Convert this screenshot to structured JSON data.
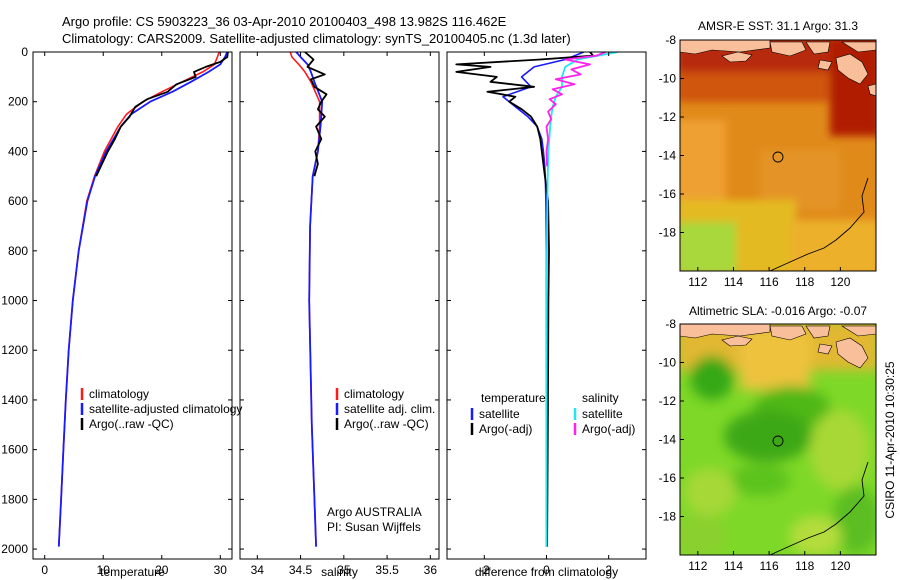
{
  "header": {
    "line1": "Argo profile: CS 5903223_36 03-Apr-2010 20100403_498 13.982S 116.462E",
    "line2": "Climatology: CARS2009. Satellite-adjusted climatology: synTS_20100405.nc (1.3d later)"
  },
  "side_label": "CSIRO 11-Apr-2010 10:30:25",
  "colors": {
    "climatology": "#ff1a1a",
    "satellite": "#1a1aff",
    "argo": "#000000",
    "salinity_satellite": "#22e6f0",
    "salinity_argo": "#ff22ee",
    "land": "#f8bf9a"
  },
  "chart_data": [
    {
      "type": "line",
      "title": "",
      "xlabel": "temperature",
      "ylabel": "",
      "xlim": [
        -2,
        32
      ],
      "ylim": [
        2040,
        0
      ],
      "xticks": [
        0,
        10,
        20,
        30
      ],
      "xtick_labels": [
        "0",
        "10",
        "20",
        "30"
      ],
      "yticks": [
        0,
        200,
        400,
        600,
        800,
        1000,
        1200,
        1400,
        1600,
        1800,
        2000
      ],
      "ytick_labels": [
        "0",
        "200",
        "400",
        "600",
        "800",
        "1000",
        "1200",
        "1400",
        "1600",
        "1800",
        "2000"
      ],
      "legend": [
        "climatology",
        "satellite-adjusted climatology",
        "Argo(..raw -QC)"
      ],
      "legend_colors": [
        "#ff1a1a",
        "#1a1aff",
        "#000000"
      ],
      "legend_position": "lower-right",
      "series": [
        {
          "name": "climatology",
          "color": "#ff1a1a",
          "depth": [
            0,
            20,
            50,
            80,
            120,
            160,
            200,
            250,
            300,
            400,
            500,
            600,
            800,
            1000,
            1200,
            1400,
            1600,
            1800,
            1990
          ],
          "values": [
            29.8,
            29.5,
            29.0,
            27.0,
            23.5,
            20.0,
            16.8,
            14.0,
            12.5,
            10.2,
            8.5,
            7.2,
            5.8,
            4.8,
            4.1,
            3.6,
            3.2,
            2.8,
            2.4
          ]
        },
        {
          "name": "satellite-adjusted climatology",
          "color": "#1a1aff",
          "depth": [
            0,
            20,
            50,
            80,
            120,
            160,
            200,
            250,
            300,
            400,
            500,
            600,
            800,
            1000,
            1200,
            1400,
            1600,
            1800,
            1990
          ],
          "values": [
            31.2,
            30.8,
            30.0,
            28.0,
            25.0,
            21.8,
            18.0,
            14.8,
            13.0,
            10.5,
            8.6,
            7.3,
            5.8,
            4.8,
            4.1,
            3.6,
            3.2,
            2.8,
            2.4
          ]
        },
        {
          "name": "Argo(..raw -QC)",
          "color": "#000000",
          "depth": [
            0,
            20,
            40,
            60,
            80,
            100,
            130,
            160,
            190,
            220,
            260,
            300,
            350,
            400,
            500
          ],
          "values": [
            31.3,
            31.2,
            30.0,
            27.5,
            25.5,
            25.8,
            22.5,
            21.0,
            17.5,
            15.5,
            14.5,
            13.0,
            12.0,
            10.8,
            8.8
          ]
        }
      ]
    },
    {
      "type": "line",
      "title": "",
      "xlabel": "salinity",
      "ylabel": "",
      "xlim": [
        33.8,
        36.1
      ],
      "ylim": [
        2040,
        0
      ],
      "xticks": [
        34,
        34.5,
        35,
        35.5,
        36
      ],
      "xtick_labels": [
        "34",
        "34.5",
        "35",
        "35.5",
        "36"
      ],
      "legend": [
        "climatology",
        "satellite adj. clim.",
        "Argo(..raw -QC)"
      ],
      "legend_colors": [
        "#ff1a1a",
        "#1a1aff",
        "#000000"
      ],
      "legend_position": "lower-right",
      "annotations": [
        "Argo AUSTRALIA",
        "PI: Susan Wijffels"
      ],
      "series": [
        {
          "name": "climatology",
          "color": "#ff1a1a",
          "depth": [
            0,
            20,
            50,
            80,
            120,
            200,
            300,
            400,
            500,
            700,
            1000,
            1500,
            1990
          ],
          "values": [
            34.38,
            34.4,
            34.48,
            34.55,
            34.62,
            34.72,
            34.72,
            34.7,
            34.64,
            34.61,
            34.6,
            34.63,
            34.68
          ]
        },
        {
          "name": "satellite adj. clim.",
          "color": "#1a1aff",
          "depth": [
            0,
            20,
            50,
            80,
            120,
            200,
            300,
            400,
            500,
            700,
            1000,
            1500,
            1990
          ],
          "values": [
            34.45,
            34.5,
            34.58,
            34.62,
            34.66,
            34.75,
            34.73,
            34.7,
            34.64,
            34.61,
            34.6,
            34.63,
            34.68
          ]
        },
        {
          "name": "Argo(..raw -QC)",
          "color": "#000000",
          "depth": [
            0,
            30,
            60,
            90,
            110,
            140,
            170,
            200,
            230,
            260,
            300,
            350,
            400,
            450,
            500
          ],
          "values": [
            34.55,
            34.65,
            34.58,
            34.78,
            34.62,
            34.66,
            34.8,
            34.74,
            34.7,
            34.78,
            34.68,
            34.74,
            34.67,
            34.7,
            34.66
          ]
        }
      ]
    },
    {
      "type": "line",
      "title": "",
      "xlabel": "difference from climatology",
      "ylabel": "",
      "xlim": [
        -3.2,
        3.2
      ],
      "ylim": [
        2040,
        0
      ],
      "xticks": [
        -2,
        0,
        2
      ],
      "xtick_labels": [
        "-2",
        "0",
        "2"
      ],
      "legend": [
        "temperature",
        "satellite",
        "Argo(-adj)",
        "salinity",
        "satellite",
        "Argo(-adj)"
      ],
      "legend_colors": [
        "#1a1aff",
        "#000000",
        "#22e6f0",
        "#ff22ee"
      ],
      "legend_position": "lower-center",
      "series": [
        {
          "name": "temperature satellite",
          "color": "#1a1aff",
          "depth": [
            0,
            30,
            60,
            100,
            140,
            180,
            220,
            260,
            300,
            350,
            400,
            450,
            500,
            600,
            800,
            1000,
            1400,
            1990
          ],
          "values": [
            1.2,
            0.6,
            -0.4,
            -0.8,
            -0.5,
            -1.4,
            -1.0,
            -0.6,
            -0.3,
            -0.15,
            -0.1,
            -0.06,
            -0.04,
            -0.02,
            0.0,
            0.0,
            0.0,
            0.0
          ]
        },
        {
          "name": "temperature Argo(-adj)",
          "color": "#000000",
          "depth": [
            0,
            15,
            30,
            50,
            60,
            80,
            100,
            120,
            140,
            160,
            180,
            200,
            230,
            260,
            300,
            350,
            400,
            500,
            600,
            800,
            1000,
            1300,
            1600,
            1990
          ],
          "values": [
            1.4,
            1.5,
            -0.2,
            -2.9,
            -1.8,
            -2.9,
            -1.6,
            -1.8,
            -0.4,
            -1.9,
            -1.0,
            -1.2,
            -0.8,
            -0.5,
            -0.3,
            -0.2,
            -0.15,
            -0.05,
            0.05,
            0.08,
            0.06,
            0.05,
            0.04,
            0.02
          ]
        },
        {
          "name": "salinity satellite",
          "color": "#22e6f0",
          "depth": [
            0,
            30,
            60,
            100,
            140,
            180,
            220,
            260,
            300,
            400,
            500,
            700,
            1000,
            1500,
            1990
          ],
          "values": [
            2.3,
            1.0,
            0.6,
            0.5,
            0.5,
            0.3,
            0.2,
            0.15,
            0.12,
            0.06,
            0.04,
            0.02,
            0.01,
            0.0,
            0.0
          ]
        },
        {
          "name": "salinity Argo(-adj)",
          "color": "#ff22ee",
          "depth": [
            0,
            15,
            30,
            50,
            70,
            90,
            110,
            130,
            150,
            170,
            190,
            210,
            240,
            270,
            300,
            350,
            400,
            460
          ],
          "values": [
            1.9,
            1.6,
            0.6,
            1.4,
            0.8,
            1.1,
            0.3,
            0.9,
            0.2,
            0.5,
            0.1,
            0.3,
            0.05,
            0.15,
            0.0,
            0.05,
            0.0,
            0.02
          ]
        }
      ]
    },
    {
      "type": "heatmap",
      "title": "AMSR-E SST: 31.1 Argo: 31.3",
      "xlim": [
        111,
        122
      ],
      "ylim": [
        -20,
        -8
      ],
      "xticks": [
        112,
        114,
        116,
        118,
        120
      ],
      "xtick_labels": [
        "112",
        "114",
        "116",
        "118",
        "120"
      ],
      "yticks": [
        -8,
        -10,
        -12,
        -14,
        -16,
        -18
      ],
      "ytick_labels": [
        "-8",
        "-10",
        "-12",
        "-14",
        "-16",
        "-18"
      ],
      "marker": {
        "lon": 116.462,
        "lat": -13.982
      }
    },
    {
      "type": "heatmap",
      "title": "Altimetric SLA: -0.016 Argo: -0.07",
      "xlim": [
        111,
        122
      ],
      "ylim": [
        -20,
        -8
      ],
      "xticks": [
        112,
        114,
        116,
        118,
        120
      ],
      "xtick_labels": [
        "112",
        "114",
        "116",
        "118",
        "120"
      ],
      "yticks": [
        -8,
        -10,
        -12,
        -14,
        -16,
        -18
      ],
      "ytick_labels": [
        "-8",
        "-10",
        "-12",
        "-14",
        "-16",
        "-18"
      ],
      "marker": {
        "lon": 116.462,
        "lat": -13.982
      }
    }
  ]
}
